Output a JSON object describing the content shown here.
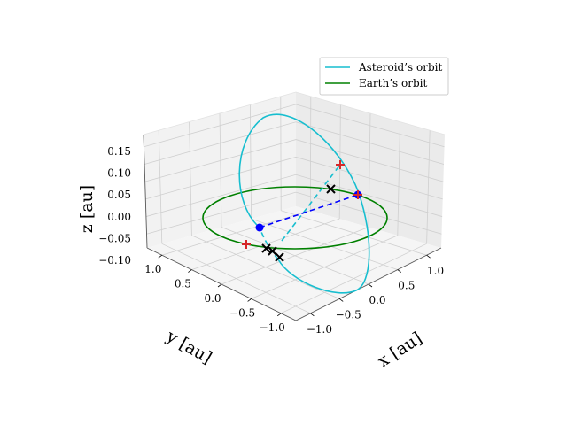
{
  "chart_data": {
    "type": "line3d",
    "title": "",
    "xlabel": "x [au]",
    "ylabel": "y [au]",
    "zlabel": "z [au]",
    "xlim": [
      -1.1,
      1.1
    ],
    "ylim": [
      -1.1,
      1.1
    ],
    "zlim": [
      -0.12,
      0.18
    ],
    "x_ticks": [
      "−1.0",
      "−0.5",
      "0.0",
      "0.5",
      "1.0"
    ],
    "y_ticks": [
      "1.0",
      "0.5",
      "0.0",
      "−0.5",
      "−1.0"
    ],
    "z_ticks": [
      "−0.10",
      "−0.05",
      "0.00",
      "0.05",
      "0.10",
      "0.15"
    ],
    "grid": true,
    "legend_position": "top-right",
    "legend": [
      {
        "label": "Asteroid’s orbit",
        "color": "#17becf"
      },
      {
        "label": "Earth’s orbit",
        "color": "#008000"
      }
    ],
    "series": [
      {
        "name": "Earth’s orbit",
        "kind": "circle",
        "semi_major_axis": 1.0,
        "inclination_deg": 0
      },
      {
        "name": "Asteroid’s orbit",
        "kind": "inclined-ellipse",
        "inclination_deg": 6,
        "note": "segment below the ecliptic drawn dashed"
      }
    ],
    "markers": {
      "blue_dots": [
        {
          "x": -0.72,
          "y": 0.28,
          "z": -0.03
        },
        {
          "x": 0.8,
          "y": -0.45,
          "z": 0.04
        }
      ],
      "red_plus": [
        {
          "x": -0.72,
          "y": 0.72,
          "z": 0.0
        },
        {
          "x": 0.42,
          "y": -0.62,
          "z": 0.08
        }
      ],
      "black_x": [
        {
          "x": -0.18,
          "y": 0.88,
          "z": -0.02
        },
        {
          "x": -0.12,
          "y": 0.88,
          "z": -0.02
        },
        {
          "x": -0.05,
          "y": 0.88,
          "z": -0.03
        },
        {
          "x": 0.32,
          "y": -0.32,
          "z": 0.06
        }
      ]
    }
  }
}
